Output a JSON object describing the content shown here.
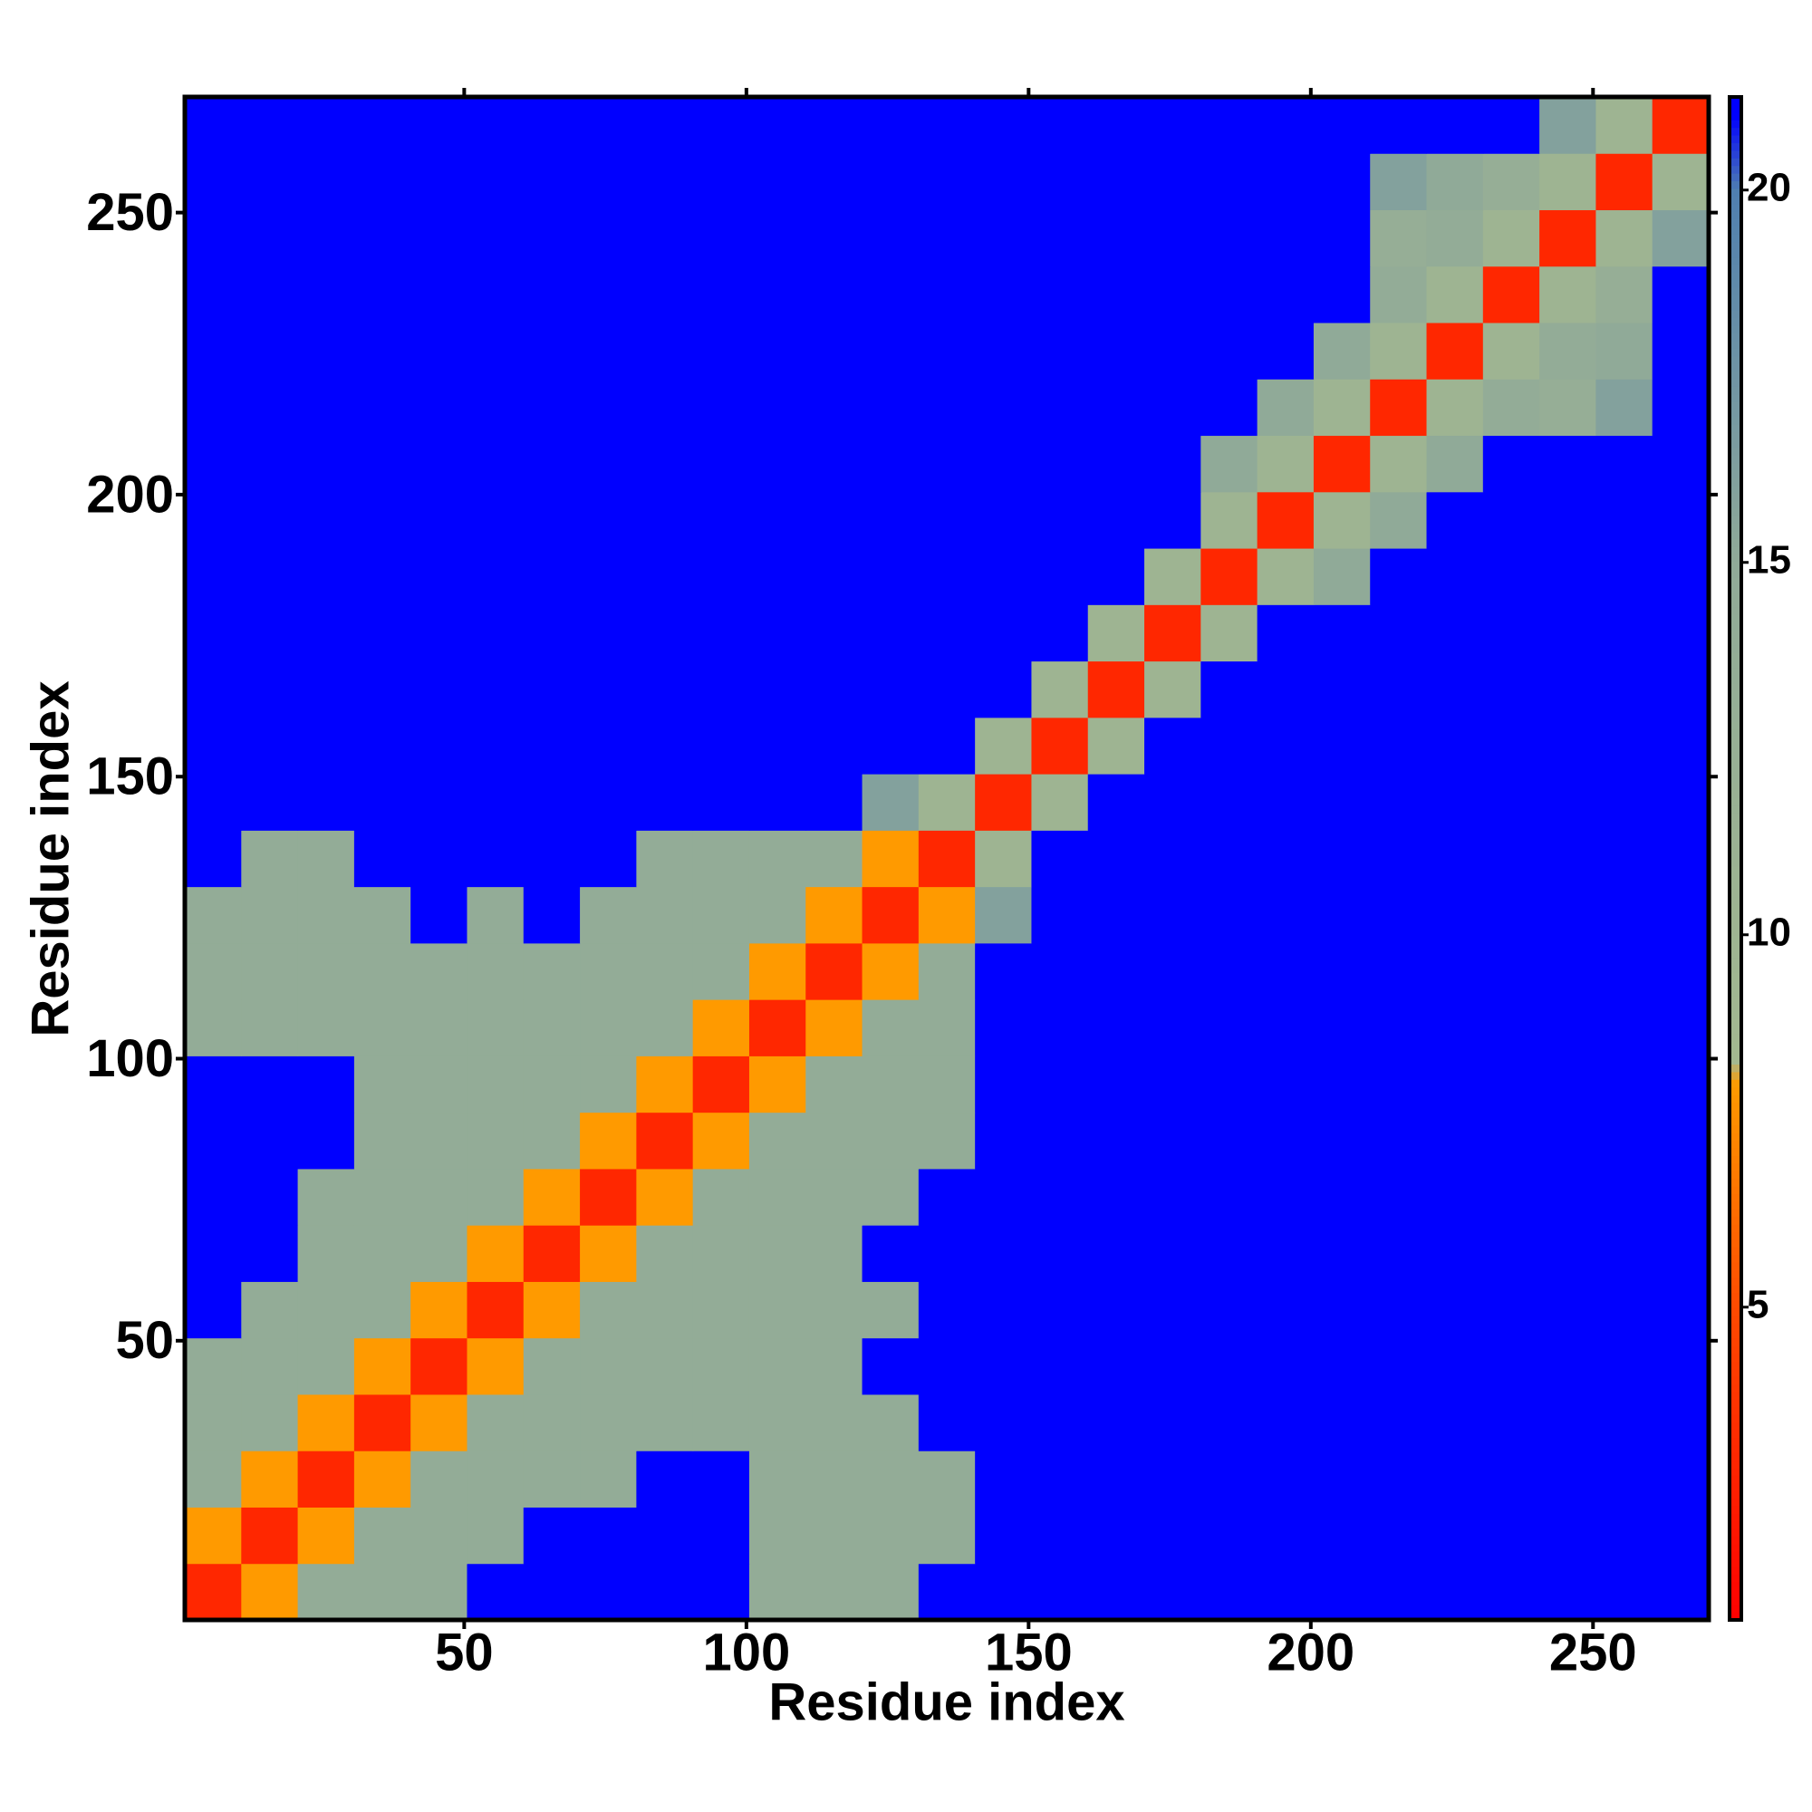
{
  "chart_data": {
    "type": "heatmap",
    "xlabel": "Residue index",
    "ylabel": "Residue index",
    "x": [
      5.5,
      15.5,
      25.5,
      35.5,
      45.5,
      55.5,
      65.5,
      75.5,
      85.5,
      95.5,
      105.5,
      115.5,
      125.5,
      135.5,
      145.5,
      155.5,
      165.5,
      175.5,
      185.5,
      195.5,
      205.5,
      215.5,
      225.5,
      235.5,
      245.5,
      255.5,
      265.5
    ],
    "y": [
      5.5,
      15.5,
      25.5,
      35.5,
      45.5,
      55.5,
      65.5,
      75.5,
      85.5,
      95.5,
      105.5,
      115.5,
      125.5,
      135.5,
      145.5,
      155.5,
      165.5,
      175.5,
      185.5,
      195.5,
      205.5,
      215.5,
      225.5,
      235.5,
      245.5,
      255.5,
      265.5
    ],
    "xlim": [
      0.5,
      270.5
    ],
    "ylim": [
      0.5,
      270.5
    ],
    "xticks": [
      50,
      100,
      150,
      200,
      250
    ],
    "yticks": [
      50,
      100,
      150,
      200,
      250
    ],
    "clim": [
      0.8,
      21.25
    ],
    "cticks": [
      5,
      10,
      15,
      20
    ],
    "colorscale": [
      {
        "value": 0.8,
        "color": "#ff0000"
      },
      {
        "value": 5,
        "color": "#ff4a00"
      },
      {
        "value": 8,
        "color": "#ff9a00"
      },
      {
        "value": 8.3,
        "color": "#a3b890"
      },
      {
        "value": 15,
        "color": "#90aa98"
      },
      {
        "value": 20,
        "color": "#4f7fb0"
      },
      {
        "value": 21,
        "color": "#0000ff"
      }
    ],
    "z": [
      [
        3,
        8,
        14,
        14,
        14,
        21,
        21,
        21,
        21,
        21,
        14,
        14,
        14,
        21,
        21,
        21,
        21,
        21,
        21,
        21,
        21,
        21,
        21,
        21,
        21,
        21,
        21
      ],
      [
        8,
        3,
        8,
        14,
        14,
        14,
        21,
        21,
        21,
        21,
        14,
        14,
        14,
        14,
        21,
        21,
        21,
        21,
        21,
        21,
        21,
        21,
        21,
        21,
        21,
        21,
        21
      ],
      [
        14,
        8,
        3,
        8,
        14,
        14,
        14,
        14,
        21,
        21,
        14,
        14,
        14,
        14,
        21,
        21,
        21,
        21,
        21,
        21,
        21,
        21,
        21,
        21,
        21,
        21,
        21
      ],
      [
        14,
        14,
        8,
        3,
        8,
        14,
        14,
        14,
        14,
        14,
        14,
        14,
        14,
        21,
        21,
        21,
        21,
        21,
        21,
        21,
        21,
        21,
        21,
        21,
        21,
        21,
        21
      ],
      [
        14,
        14,
        14,
        8,
        3,
        8,
        14,
        14,
        14,
        14,
        14,
        14,
        21,
        21,
        21,
        21,
        21,
        21,
        21,
        21,
        21,
        21,
        21,
        21,
        21,
        21,
        21
      ],
      [
        21,
        14,
        14,
        14,
        8,
        3,
        8,
        14,
        14,
        14,
        14,
        14,
        14,
        21,
        21,
        21,
        21,
        21,
        21,
        21,
        21,
        21,
        21,
        21,
        21,
        21,
        21
      ],
      [
        21,
        21,
        14,
        14,
        14,
        8,
        3,
        8,
        14,
        14,
        14,
        14,
        21,
        21,
        21,
        21,
        21,
        21,
        21,
        21,
        21,
        21,
        21,
        21,
        21,
        21,
        21
      ],
      [
        21,
        21,
        14,
        14,
        14,
        14,
        8,
        3,
        8,
        14,
        14,
        14,
        14,
        21,
        21,
        21,
        21,
        21,
        21,
        21,
        21,
        21,
        21,
        21,
        21,
        21,
        21
      ],
      [
        21,
        21,
        21,
        14,
        14,
        14,
        14,
        8,
        3,
        8,
        14,
        14,
        14,
        14,
        21,
        21,
        21,
        21,
        21,
        21,
        21,
        21,
        21,
        21,
        21,
        21,
        21
      ],
      [
        21,
        21,
        21,
        14,
        14,
        14,
        14,
        14,
        8,
        3,
        8,
        14,
        14,
        14,
        21,
        21,
        21,
        21,
        21,
        21,
        21,
        21,
        21,
        21,
        21,
        21,
        21
      ],
      [
        14,
        14,
        14,
        14,
        14,
        14,
        14,
        14,
        14,
        8,
        3,
        8,
        14,
        14,
        21,
        21,
        21,
        21,
        21,
        21,
        21,
        21,
        21,
        21,
        21,
        21,
        21
      ],
      [
        14,
        14,
        14,
        14,
        14,
        14,
        14,
        14,
        14,
        14,
        8,
        3,
        8,
        14,
        21,
        21,
        21,
        21,
        21,
        21,
        21,
        21,
        21,
        21,
        21,
        21,
        21
      ],
      [
        14,
        14,
        14,
        14,
        21,
        14,
        21,
        14,
        14,
        14,
        14,
        8,
        3,
        8,
        16,
        21,
        21,
        21,
        21,
        21,
        21,
        21,
        21,
        21,
        21,
        21,
        21
      ],
      [
        21,
        14,
        14,
        21,
        21,
        21,
        21,
        21,
        14,
        14,
        14,
        14,
        8,
        3,
        10,
        21,
        21,
        21,
        21,
        21,
        21,
        21,
        21,
        21,
        21,
        21,
        21
      ],
      [
        21,
        21,
        21,
        21,
        21,
        21,
        21,
        21,
        21,
        21,
        21,
        21,
        16,
        10,
        3,
        10,
        21,
        21,
        21,
        21,
        21,
        21,
        21,
        21,
        21,
        21,
        21
      ],
      [
        21,
        21,
        21,
        21,
        21,
        21,
        21,
        21,
        21,
        21,
        21,
        21,
        21,
        21,
        10,
        3,
        10,
        21,
        21,
        21,
        21,
        21,
        21,
        21,
        21,
        21,
        21
      ],
      [
        21,
        21,
        21,
        21,
        21,
        21,
        21,
        21,
        21,
        21,
        21,
        21,
        21,
        21,
        21,
        10,
        3,
        10,
        21,
        21,
        21,
        21,
        21,
        21,
        21,
        21,
        21
      ],
      [
        21,
        21,
        21,
        21,
        21,
        21,
        21,
        21,
        21,
        21,
        21,
        21,
        21,
        21,
        21,
        21,
        10,
        3,
        10,
        21,
        21,
        21,
        21,
        21,
        21,
        21,
        21
      ],
      [
        21,
        21,
        21,
        21,
        21,
        21,
        21,
        21,
        21,
        21,
        21,
        21,
        21,
        21,
        21,
        21,
        21,
        10,
        3,
        10,
        15,
        21,
        21,
        21,
        21,
        21,
        21
      ],
      [
        21,
        21,
        21,
        21,
        21,
        21,
        21,
        21,
        21,
        21,
        21,
        21,
        21,
        21,
        21,
        21,
        21,
        21,
        10,
        3,
        10,
        15,
        21,
        21,
        21,
        21,
        21
      ],
      [
        21,
        21,
        21,
        21,
        21,
        21,
        21,
        21,
        21,
        21,
        21,
        21,
        21,
        21,
        21,
        21,
        21,
        21,
        15,
        10,
        3,
        10,
        15,
        21,
        21,
        21,
        21
      ],
      [
        21,
        21,
        21,
        21,
        21,
        21,
        21,
        21,
        21,
        21,
        21,
        21,
        21,
        21,
        21,
        21,
        21,
        21,
        21,
        15,
        10,
        3,
        10,
        14,
        13,
        16,
        21
      ],
      [
        21,
        21,
        21,
        21,
        21,
        21,
        21,
        21,
        21,
        21,
        21,
        21,
        21,
        21,
        21,
        21,
        21,
        21,
        21,
        21,
        15,
        10,
        3,
        10,
        14,
        15,
        21
      ],
      [
        21,
        21,
        21,
        21,
        21,
        21,
        21,
        21,
        21,
        21,
        21,
        21,
        21,
        21,
        21,
        21,
        21,
        21,
        21,
        21,
        21,
        14,
        10,
        3,
        10,
        13,
        21
      ],
      [
        21,
        21,
        21,
        21,
        21,
        21,
        21,
        21,
        21,
        21,
        21,
        21,
        21,
        21,
        21,
        21,
        21,
        21,
        21,
        21,
        21,
        13,
        14,
        10,
        3,
        10,
        16
      ],
      [
        21,
        21,
        21,
        21,
        21,
        21,
        21,
        21,
        21,
        21,
        21,
        21,
        21,
        21,
        21,
        21,
        21,
        21,
        21,
        21,
        21,
        16,
        15,
        13,
        10,
        3,
        10
      ],
      [
        21,
        21,
        21,
        21,
        21,
        21,
        21,
        21,
        21,
        21,
        21,
        21,
        21,
        21,
        21,
        21,
        21,
        21,
        21,
        21,
        21,
        21,
        21,
        21,
        16,
        10,
        3
      ]
    ]
  }
}
